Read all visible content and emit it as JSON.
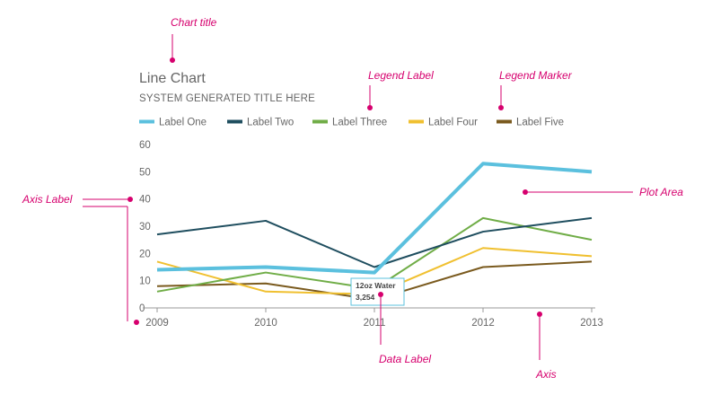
{
  "chart_data": {
    "type": "line",
    "title": "Line Chart",
    "subtitle": "SYSTEM GENERATED TITLE HERE",
    "x": [
      "2009",
      "2010",
      "2011",
      "2012",
      "2013"
    ],
    "ylim": [
      0,
      60
    ],
    "yticks": [
      0,
      10,
      20,
      30,
      40,
      50,
      60
    ],
    "grid": false,
    "legend_position": "top-left",
    "series": [
      {
        "name": "Label One",
        "color": "#5bc0de",
        "values": [
          14,
          15,
          13,
          53,
          50
        ]
      },
      {
        "name": "Label Two",
        "color": "#1f4e5f",
        "values": [
          27,
          32,
          15,
          28,
          33
        ]
      },
      {
        "name": "Label Three",
        "color": "#70ad47",
        "values": [
          6,
          13,
          7,
          33,
          25
        ]
      },
      {
        "name": "Label Four",
        "color": "#f0c030",
        "values": [
          17,
          6,
          5,
          22,
          19
        ]
      },
      {
        "name": "Label Five",
        "color": "#7a5a1e",
        "values": [
          8,
          9,
          3,
          15,
          17
        ]
      }
    ],
    "tooltip": {
      "title": "12oz Water",
      "value": "3,254",
      "series": 0,
      "x": "2011"
    }
  },
  "annotations": {
    "color": "#d6006e",
    "chart_title": "Chart title",
    "legend_label": "Legend Label",
    "legend_marker": "Legend Marker",
    "axis_label": "Axis Label",
    "plot_area": "Plot Area",
    "data_label": "Data Label",
    "axis": "Axis"
  }
}
